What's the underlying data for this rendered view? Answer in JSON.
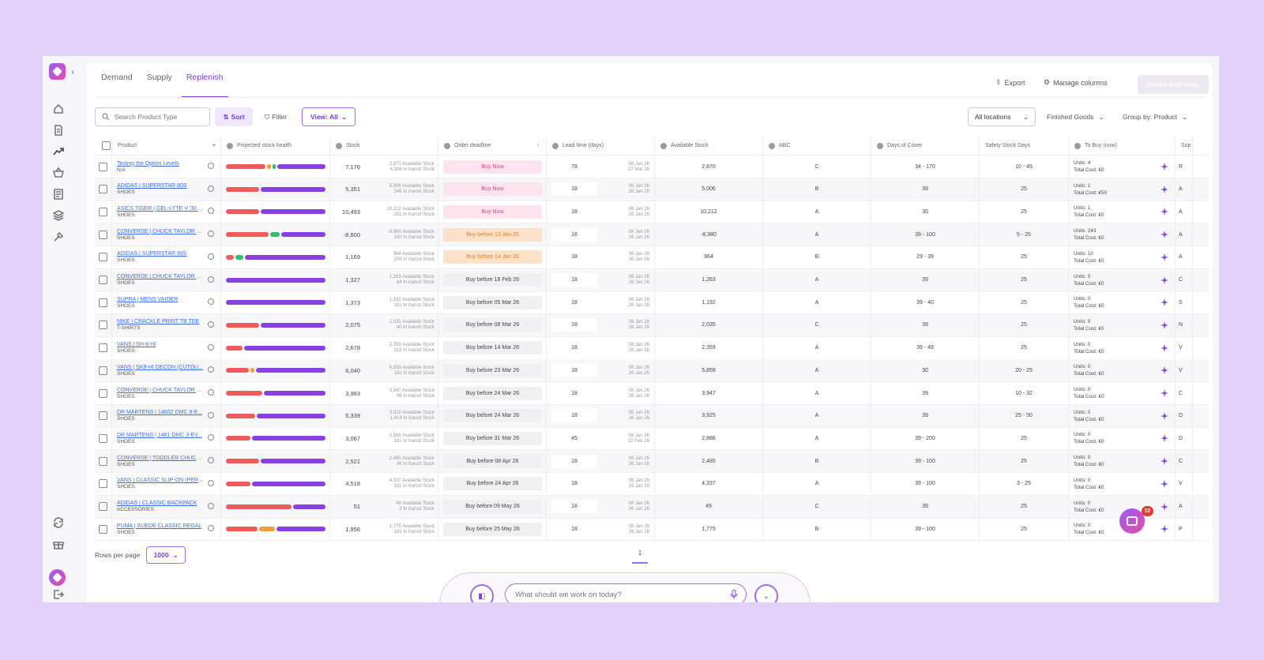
{
  "tabs": [
    {
      "label": "Demand"
    },
    {
      "label": "Supply"
    },
    {
      "label": "Replenish"
    }
  ],
  "actions": {
    "export": "Export",
    "manage_columns": "Manage columns",
    "create": "Create draft order"
  },
  "toolbar": {
    "search_placeholder": "Search Product Type",
    "sort": "Sort",
    "filter": "Filter",
    "view": "View: All",
    "locations": "All locations",
    "category": "Finished Goods",
    "group_by": "Group by: Product"
  },
  "columns": [
    "Product",
    "Projected stock health",
    "Stock",
    "Order deadline",
    "Lead time (days)",
    "Available Stock",
    "ABC",
    "Days of Cover",
    "Safety Stock Days",
    "To Buy (now)",
    "Sup"
  ],
  "colors": {
    "accent": "#7b3fe4",
    "bar_red": "#ef5b5b",
    "bar_orange": "#f79a3b",
    "bar_green": "#2fbe6a",
    "bar_purple": "#8a3fe0"
  },
  "rows": [
    {
      "name": "Testing the Option Levels",
      "type": "N/A",
      "bars": [
        {
          "c": "r",
          "w": 0.42
        },
        {
          "c": "o",
          "w": 0.04
        },
        {
          "c": "g",
          "w": 0.03
        },
        {
          "c": "p",
          "w": 0.51
        }
      ],
      "stock": "7,176",
      "avail_sub": "2,870 Available Stock",
      "transit_sub": "4,306 In transit Stock",
      "deadline": "Buy Now",
      "dstyle": "now",
      "lead": "78",
      "date1": "08 Jan 26",
      "date2": "27 Mar 26",
      "available": "2,870",
      "abc": "C",
      "cover": "34 - 170",
      "safety": "10 - 45",
      "units": "Units: 4",
      "cost": "Total Cost: €0",
      "sup": "R"
    },
    {
      "name": "ADIDAS | SUPERSTAR 80S",
      "type": "SHOES",
      "bars": [
        {
          "c": "r",
          "w": 0.34
        },
        {
          "c": "p",
          "w": 0.66
        }
      ],
      "stock": "5,351",
      "avail_sub": "5,006 Available Stock",
      "transit_sub": "345 In transit Stock",
      "deadline": "Buy Now",
      "dstyle": "now",
      "lead": "18",
      "date1": "08 Jan 26",
      "date2": "26 Jan 26",
      "available": "5,006",
      "abc": "B",
      "cover": "39",
      "safety": "25",
      "units": "Units: 1",
      "cost": "Total Cost: €50",
      "sup": "A"
    },
    {
      "name": "ASICS TIGER | GEL-LYTE V '30 Y...",
      "type": "SHOES",
      "bars": [
        {
          "c": "r",
          "w": 0.34
        },
        {
          "c": "p",
          "w": 0.66
        }
      ],
      "stock": "10,493",
      "avail_sub": "10,212 Available Stock",
      "transit_sub": "281 In transit Stock",
      "deadline": "Buy Now",
      "dstyle": "now",
      "lead": "18",
      "date1": "08 Jan 26",
      "date2": "26 Jan 26",
      "available": "10,212",
      "abc": "A",
      "cover": "30",
      "safety": "25",
      "units": "Units: 1",
      "cost": "Total Cost: €0",
      "sup": "A"
    },
    {
      "name": "CONVERSE | CHUCK TAYLOR A...",
      "type": "SHOES",
      "bars": [
        {
          "c": "r",
          "w": 0.44
        },
        {
          "c": "g",
          "w": 0.1
        },
        {
          "c": "p",
          "w": 0.46
        }
      ],
      "stock": "-8,800",
      "avail_sub": "-8,980 Available Stock",
      "transit_sub": "180 In transit Stock",
      "deadline": "Buy before 13 Jan 26",
      "dstyle": "warn",
      "lead": "18",
      "date1": "08 Jan 26",
      "date2": "26 Jan 26",
      "available": "-8,980",
      "abc": "A",
      "cover": "39 - 100",
      "safety": "5 - 25",
      "units": "Units: 243",
      "cost": "Total Cost: €0",
      "sup": "A"
    },
    {
      "name": "ADIDAS | SUPERSTAR 80S",
      "type": "SHOES",
      "bars": [
        {
          "c": "r",
          "w": 0.08
        },
        {
          "c": "g",
          "w": 0.08
        },
        {
          "c": "p",
          "w": 0.84
        }
      ],
      "stock": "1,169",
      "avail_sub": "964 Available Stock",
      "transit_sub": "205 In transit Stock",
      "deadline": "Buy before 14 Jan 26",
      "dstyle": "warn",
      "lead": "18",
      "date1": "08 Jan 26",
      "date2": "26 Jan 26",
      "available": "964",
      "abc": "B",
      "cover": "29 - 39",
      "safety": "25",
      "units": "Units: 10",
      "cost": "Total Cost: €0",
      "sup": "A"
    },
    {
      "name": "CONVERSE | CHUCK TAYLOR A...",
      "type": "SHOES",
      "bars": [
        {
          "c": "p",
          "w": 1
        }
      ],
      "stock": "1,327",
      "avail_sub": "1,263 Available Stock",
      "transit_sub": "64 In transit Stock",
      "deadline": "Buy before 18 Feb 26",
      "dstyle": "norm",
      "lead": "18",
      "date1": "08 Jan 26",
      "date2": "26 Jan 26",
      "available": "1,263",
      "abc": "A",
      "cover": "39",
      "safety": "25",
      "units": "Units: 0",
      "cost": "Total Cost: €0",
      "sup": "C"
    },
    {
      "name": "SUPRA | MENS VAIDER",
      "type": "SHOES",
      "bars": [
        {
          "c": "p",
          "w": 1
        }
      ],
      "stock": "1,373",
      "avail_sub": "1,192 Available Stock",
      "transit_sub": "181 In transit Stock",
      "deadline": "Buy before 05 Mar 26",
      "dstyle": "norm",
      "lead": "18",
      "date1": "08 Jan 26",
      "date2": "26 Jan 26",
      "available": "1,192",
      "abc": "A",
      "cover": "39 - 40",
      "safety": "25",
      "units": "Units: 0",
      "cost": "Total Cost: €0",
      "sup": "S"
    },
    {
      "name": "NIKE | CRACKLE PRINT TB TEE",
      "type": "T-SHIRTS",
      "bars": [
        {
          "c": "r",
          "w": 0.34
        },
        {
          "c": "p",
          "w": 0.66
        }
      ],
      "stock": "2,075",
      "avail_sub": "2,035 Available Stock",
      "transit_sub": "40 In transit Stock",
      "deadline": "Buy before 08 Mar 26",
      "dstyle": "norm",
      "lead": "18",
      "date1": "08 Jan 26",
      "date2": "26 Jan 26",
      "available": "2,035",
      "abc": "C",
      "cover": "39",
      "safety": "25",
      "units": "Units: 0",
      "cost": "Total Cost: €0",
      "sup": "N"
    },
    {
      "name": "VANS | SH-8 HI",
      "type": "SHOES",
      "bars": [
        {
          "c": "r",
          "w": 0.17
        },
        {
          "c": "p",
          "w": 0.83
        }
      ],
      "stock": "2,678",
      "avail_sub": "2,359 Available Stock",
      "transit_sub": "319 In transit Stock",
      "deadline": "Buy before 14 Mar 26",
      "dstyle": "norm",
      "lead": "18",
      "date1": "08 Jan 26",
      "date2": "26 Jan 26",
      "available": "2,359",
      "abc": "A",
      "cover": "39 - 49",
      "safety": "25",
      "units": "Units: 0",
      "cost": "Total Cost: €0",
      "sup": "V"
    },
    {
      "name": "VANS | SK8-HI DECON (CUTOU...",
      "type": "SHOES",
      "bars": [
        {
          "c": "r",
          "w": 0.24
        },
        {
          "c": "o",
          "w": 0.04
        },
        {
          "c": "p",
          "w": 0.72
        }
      ],
      "stock": "6,040",
      "avail_sub": "5,859 Available Stock",
      "transit_sub": "181 In transit Stock",
      "deadline": "Buy before 23 Mar 26",
      "dstyle": "norm",
      "lead": "18",
      "date1": "08 Jan 26",
      "date2": "26 Jan 26",
      "available": "5,859",
      "abc": "A",
      "cover": "30",
      "safety": "20 - 25",
      "units": "Units: 0",
      "cost": "Total Cost: €0",
      "sup": "V"
    },
    {
      "name": "CONVERSE | CHUCK TAYLOR A...",
      "type": "SHOES",
      "bars": [
        {
          "c": "r",
          "w": 0.37
        },
        {
          "c": "p",
          "w": 0.63
        }
      ],
      "stock": "3,983",
      "avail_sub": "3,947 Available Stock",
      "transit_sub": "36 In transit Stock",
      "deadline": "Buy before 24 Mar 26",
      "dstyle": "norm",
      "lead": "18",
      "date1": "08 Jan 26",
      "date2": "26 Jan 26",
      "available": "3,947",
      "abc": "A",
      "cover": "39",
      "safety": "10 - 32",
      "units": "Units: 0",
      "cost": "Total Cost: €0",
      "sup": "C"
    },
    {
      "name": "DR MARTENS | 1460Z DMC 8-E...",
      "type": "SHOES",
      "bars": [
        {
          "c": "r",
          "w": 0.3
        },
        {
          "c": "p",
          "w": 0.7
        }
      ],
      "stock": "5,339",
      "avail_sub": "3,925 Available Stock",
      "transit_sub": "1,414 In transit Stock",
      "deadline": "Buy before 24 Mar 26",
      "dstyle": "norm",
      "lead": "18",
      "date1": "08 Jan 26",
      "date2": "26 Jan 26",
      "available": "3,925",
      "abc": "A",
      "cover": "39",
      "safety": "25 - 50",
      "units": "Units: 0",
      "cost": "Total Cost: €0",
      "sup": "D"
    },
    {
      "name": "DR MARTENS | 1461 DMC 3-EY...",
      "type": "SHOES",
      "bars": [
        {
          "c": "r",
          "w": 0.25
        },
        {
          "c": "p",
          "w": 0.75
        }
      ],
      "stock": "3,067",
      "avail_sub": "2,886 Available Stock",
      "transit_sub": "181 In transit Stock",
      "deadline": "Buy before 31 Mar 26",
      "dstyle": "norm",
      "lead": "45",
      "date1": "08 Jan 26",
      "date2": "22 Feb 26",
      "available": "2,886",
      "abc": "A",
      "cover": "39 - 200",
      "safety": "25",
      "units": "Units: 0",
      "cost": "Total Cost: €0",
      "sup": "D"
    },
    {
      "name": "CONVERSE | TODDLER CHUCK...",
      "type": "SHOES",
      "bars": [
        {
          "c": "r",
          "w": 0.34
        },
        {
          "c": "p",
          "w": 0.66
        }
      ],
      "stock": "2,521",
      "avail_sub": "2,485 Available Stock",
      "transit_sub": "36 In transit Stock",
      "deadline": "Buy before 08 Apr 26",
      "dstyle": "norm",
      "lead": "18",
      "date1": "08 Jan 26",
      "date2": "26 Jan 26",
      "available": "2,485",
      "abc": "B",
      "cover": "39 - 100",
      "safety": "25",
      "units": "Units: 0",
      "cost": "Total Cost: €0",
      "sup": "C"
    },
    {
      "name": "VANS | CLASSIC SLIP-ON (PERF...",
      "type": "SHOES",
      "bars": [
        {
          "c": "r",
          "w": 0.25
        },
        {
          "c": "p",
          "w": 0.75
        }
      ],
      "stock": "4,518",
      "avail_sub": "4,337 Available Stock",
      "transit_sub": "181 In transit Stock",
      "deadline": "Buy before 24 Apr 26",
      "dstyle": "norm",
      "lead": "18",
      "date1": "08 Jan 26",
      "date2": "26 Jan 26",
      "available": "4,337",
      "abc": "A",
      "cover": "39 - 100",
      "safety": "3 - 25",
      "units": "Units: 0",
      "cost": "Total Cost: €0",
      "sup": "V"
    },
    {
      "name": "ADIDAS | CLASSIC BACKPACK",
      "type": "ACCESSORIES",
      "bars": [
        {
          "c": "r",
          "w": 0.67
        },
        {
          "c": "p",
          "w": 0.33
        }
      ],
      "stock": "51",
      "avail_sub": "49 Available Stock",
      "transit_sub": "2 In transit Stock",
      "deadline": "Buy before 09 May 26",
      "dstyle": "norm",
      "lead": "18",
      "date1": "08 Jan 26",
      "date2": "26 Jan 26",
      "available": "49",
      "abc": "C",
      "cover": "39",
      "safety": "25",
      "units": "Units: 0",
      "cost": "Total Cost: €0",
      "sup": "A"
    },
    {
      "name": "PUMA | SUEDE CLASSIC REGAL",
      "type": "SHOES",
      "bars": [
        {
          "c": "r",
          "w": 0.33
        },
        {
          "c": "o",
          "w": 0.16
        },
        {
          "c": "p",
          "w": 0.51
        }
      ],
      "stock": "1,956",
      "avail_sub": "1,775 Available Stock",
      "transit_sub": "181 In transit Stock",
      "deadline": "Buy before 25 May 26",
      "dstyle": "norm",
      "lead": "18",
      "date1": "08 Jan 26",
      "date2": "26 Jan 26",
      "available": "1,775",
      "abc": "B",
      "cover": "39 - 100",
      "safety": "25",
      "units": "Units: 0",
      "cost": "Total Cost: €0",
      "sup": "P"
    }
  ],
  "footer": {
    "rows_per_page_label": "Rows per page",
    "rows_per_page": "1000",
    "page": "1"
  },
  "chat": {
    "placeholder": "What should we work on today?"
  },
  "notifications": {
    "count": "10"
  }
}
